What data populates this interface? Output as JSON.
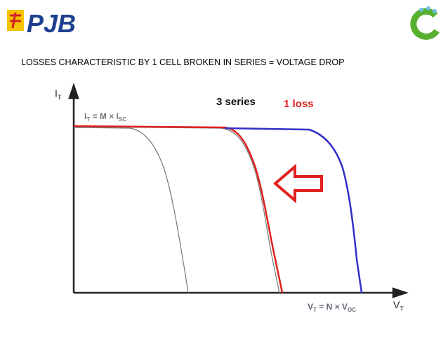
{
  "header": {
    "logo": "PJB",
    "title": "LOSSES CHARACTERISTIC BY 1 CELL BROKEN IN SERIES = VOLTAGE DROP"
  },
  "diagram": {
    "y_axis_label": {
      "main": "I",
      "sub": "T"
    },
    "x_axis_label": {
      "main": "V",
      "sub": "T"
    },
    "current_formula": {
      "lhs": "I",
      "lhs_sub": "T",
      "mid": " = M × I",
      "rhs_sub": "SC"
    },
    "voltage_formula": {
      "lhs": "V",
      "lhs_sub": "T",
      "mid": " = N × V",
      "rhs_sub": "OC"
    },
    "series_label": "3 series",
    "loss_label": "1 loss"
  }
}
